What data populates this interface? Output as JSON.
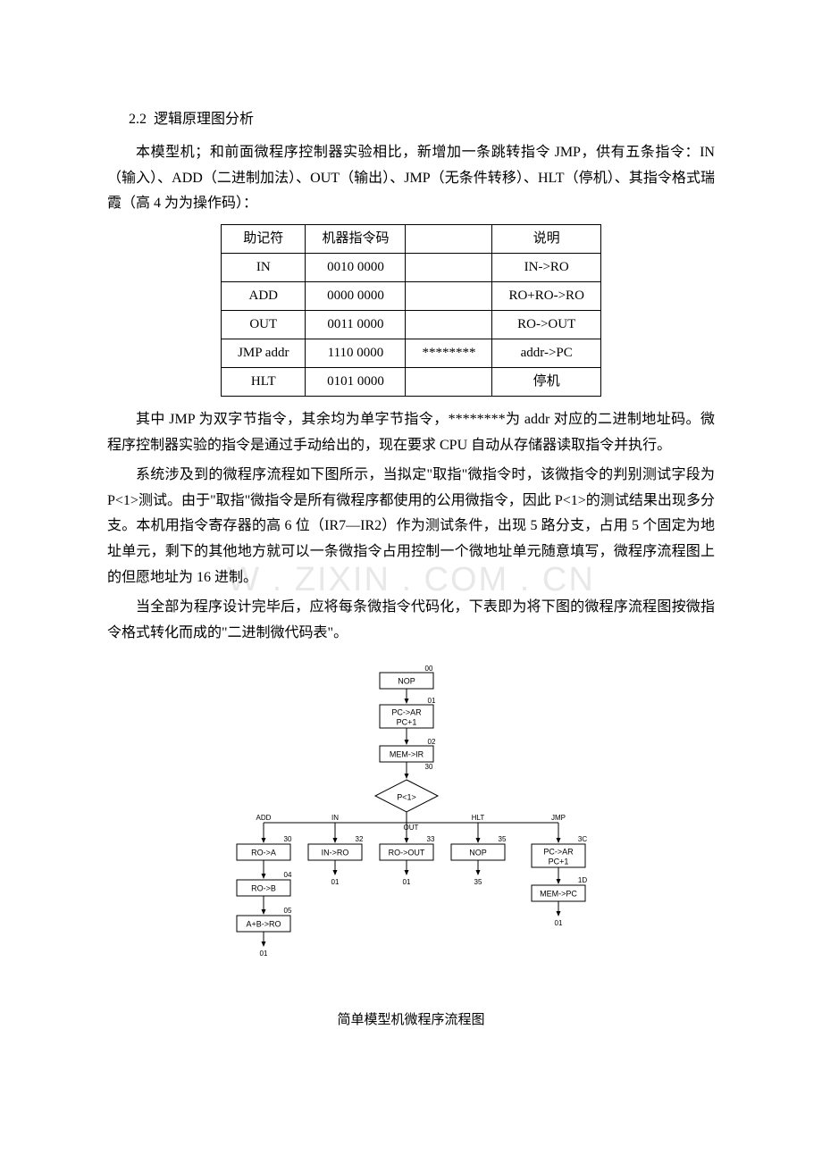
{
  "section_number": "2.2",
  "section_title": "逻辑原理图分析",
  "para1": "本模型机；和前面微程序控制器实验相比，新增加一条跳转指令 JMP，供有五条指令：IN（输入）、ADD（二进制加法）、OUT（输出）、JMP（无条件转移）、HLT（停机）、其指令格式瑞霞（高 4 为为操作码）：",
  "table": {
    "headers": [
      "助记符",
      "机器指令码",
      "",
      "说明"
    ],
    "rows": [
      [
        "IN",
        "0010 0000",
        "",
        "IN->RO"
      ],
      [
        "ADD",
        "0000 0000",
        "",
        "RO+RO->RO"
      ],
      [
        "OUT",
        "0011 0000",
        "",
        "RO->OUT"
      ],
      [
        "JMP addr",
        "1110 0000",
        "********",
        "addr->PC"
      ],
      [
        "HLT",
        "0101 0000",
        "",
        "停机"
      ]
    ]
  },
  "para2": "其中 JMP 为双字节指令，其余均为单字节指令，********为 addr 对应的二进制地址码。微程序控制器实验的指令是通过手动给出的，现在要求 CPU 自动从存储器读取指令并执行。",
  "para3": "系统涉及到的微程序流程如下图所示，当拟定\"取指\"微指令时，该微指令的判别测试字段为 P<1>测试。由于\"取指\"微指令是所有微程序都使用的公用微指令，因此 P<1>的测试结果出现多分支。本机用指令寄存器的高 6 位（IR7—IR2）作为测试条件，出现 5 路分支，占用 5 个固定为地址单元，剩下的其他地方就可以一条微指令占用控制一个微地址单元随意填写，微程序流程图上的但愿地址为 16 进制。",
  "para4": "当全部为程序设计完毕后，应将每条微指令代码化，下表即为将下图的微程序流程图按微指令格式转化而成的\"二进制微代码表\"。",
  "watermark_text": "W . ZIXIN . COM . CN",
  "flowchart": {
    "caption": "简单模型机微程序流程图",
    "nodes": {
      "nop1": {
        "label": "NOP",
        "addr": "00"
      },
      "pcar": {
        "label1": "PC->AR",
        "label2": "PC+1",
        "addr": "01"
      },
      "memir": {
        "label": "MEM->IR",
        "addr": "02"
      },
      "p1": {
        "label": "P<1>",
        "addr": "30"
      },
      "add_label": "ADD",
      "in_label": "IN",
      "out_label": "OUT",
      "hlt_label": "HLT",
      "jmp_label": "JMP",
      "roa": {
        "label": "RO->A",
        "addr": "30"
      },
      "inro": {
        "label": "IN->RO",
        "addr": "32"
      },
      "roout": {
        "label": "RO->OUT",
        "addr": "33"
      },
      "nop2": {
        "label": "NOP",
        "addr": "35"
      },
      "pcar2": {
        "label1": "PC->AR",
        "label2": "PC+1",
        "addr": "3C"
      },
      "rob": {
        "label": "RO->B",
        "addr": "04"
      },
      "mempc": {
        "label": "MEM->PC",
        "addr": "1D"
      },
      "abro": {
        "label": "A+B->RO",
        "addr": "05"
      },
      "end01": "01",
      "end35": "35"
    }
  }
}
